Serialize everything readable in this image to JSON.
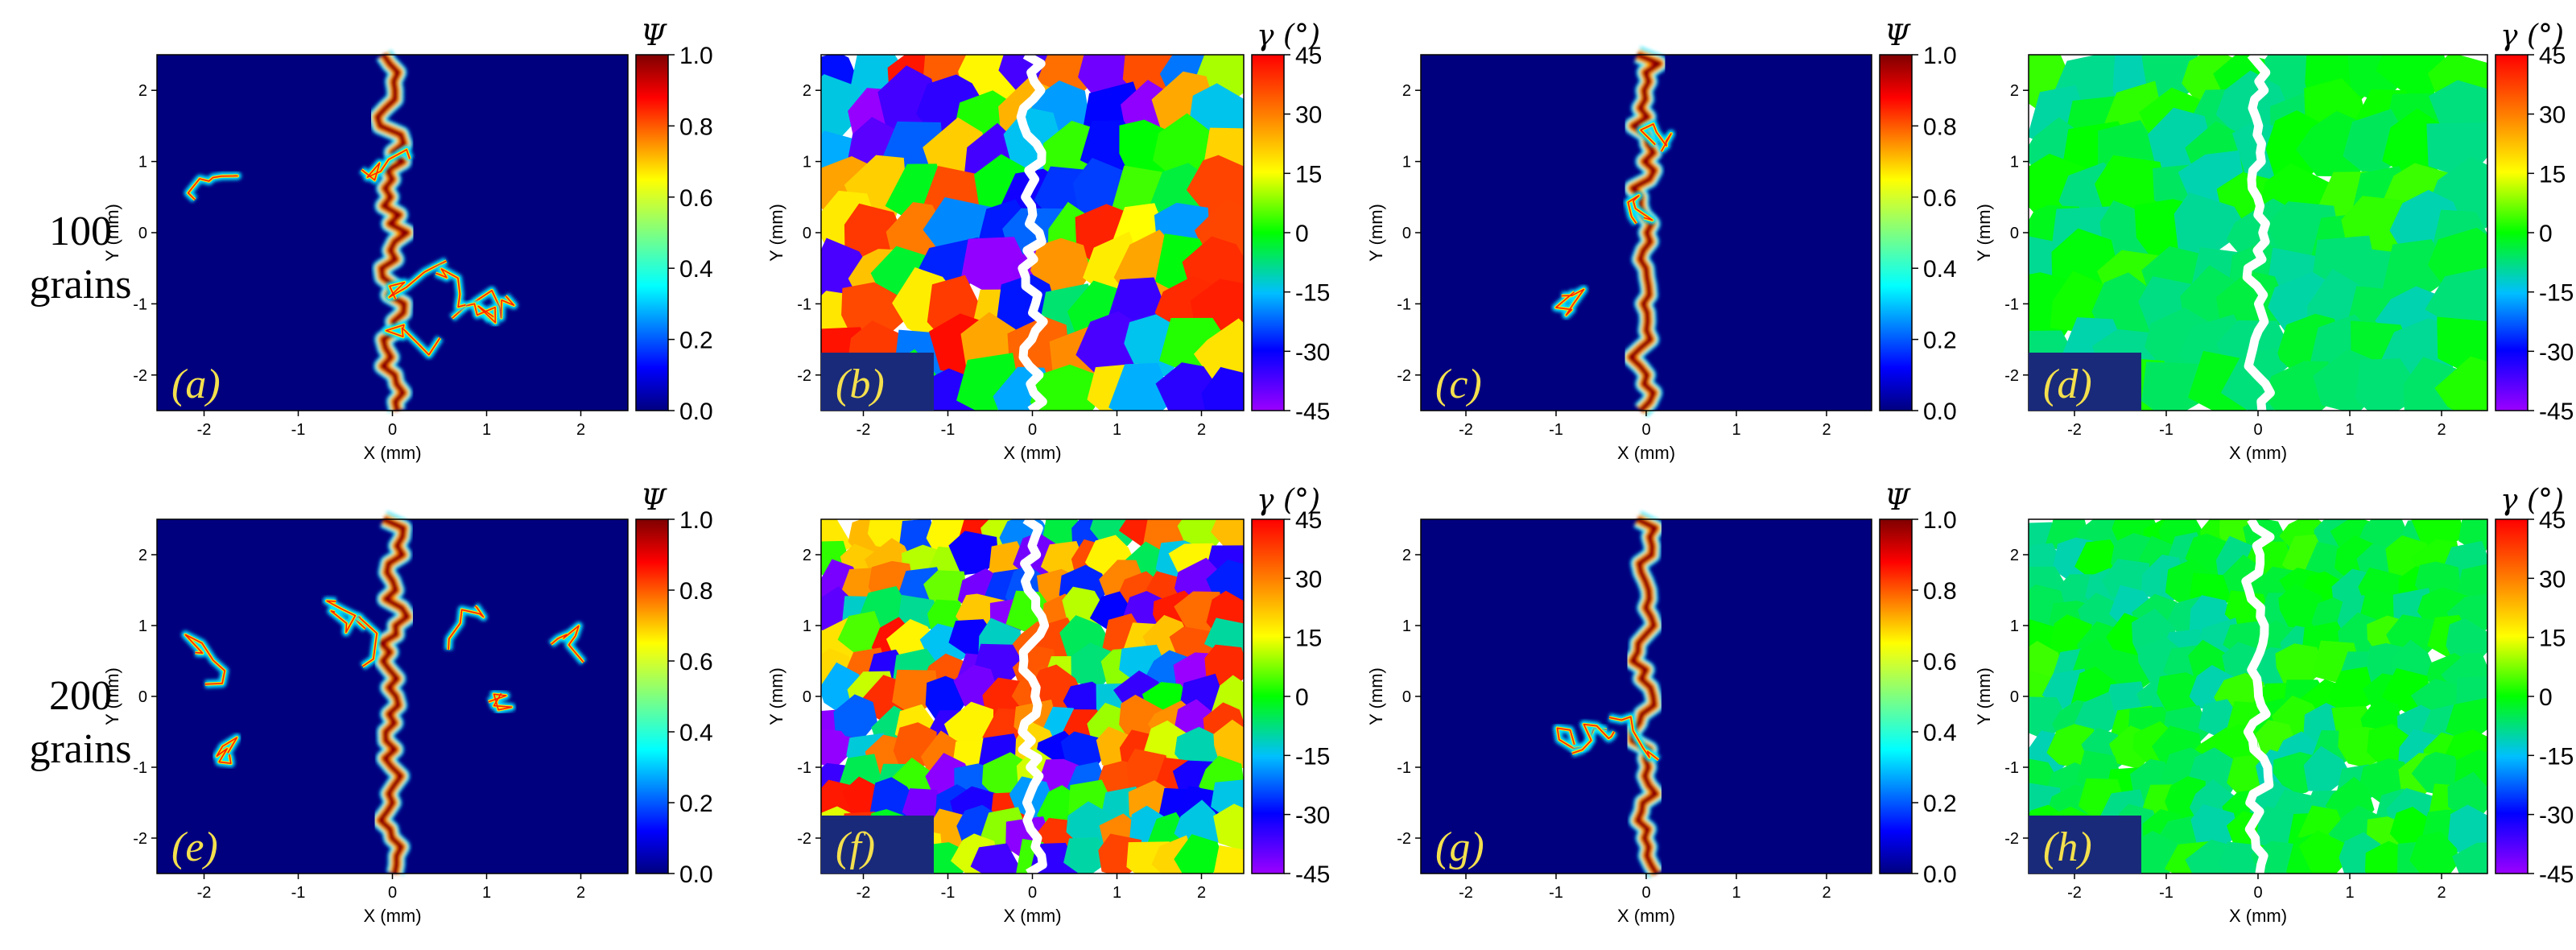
{
  "row_labels": [
    {
      "count": "100",
      "unit": "grains"
    },
    {
      "count": "200",
      "unit": "grains"
    }
  ],
  "axes": {
    "x_label": "X (mm)",
    "y_label": "Y (mm)",
    "x_ticks": [
      "-2",
      "-1",
      "0",
      "1",
      "2"
    ],
    "y_ticks": [
      "2",
      "1",
      "0",
      "-1",
      "-2"
    ],
    "range": [
      -2.5,
      2.5
    ]
  },
  "colorbars": {
    "psi": {
      "symbol": "Ψ",
      "ticks": [
        "1.0",
        "0.8",
        "0.6",
        "0.4",
        "0.2",
        "0.0"
      ],
      "range": [
        0,
        1
      ]
    },
    "gamma": {
      "symbol": "γ (°)",
      "ticks": [
        "45",
        "30",
        "15",
        "0",
        "-15",
        "-30",
        "-45"
      ],
      "range": [
        -45,
        45
      ]
    }
  },
  "panels": [
    {
      "tag": "(a)",
      "kind": "psi"
    },
    {
      "tag": "(b)",
      "kind": "gamma"
    },
    {
      "tag": "(c)",
      "kind": "psi"
    },
    {
      "tag": "(d)",
      "kind": "gamma"
    },
    {
      "tag": "(e)",
      "kind": "psi"
    },
    {
      "tag": "(f)",
      "kind": "gamma"
    },
    {
      "tag": "(g)",
      "kind": "psi"
    },
    {
      "tag": "(h)",
      "kind": "gamma"
    }
  ],
  "colors": {
    "psi_background": "#00007f",
    "label_box": "#1a2a7a",
    "tag_text": "#f4e04d"
  }
}
